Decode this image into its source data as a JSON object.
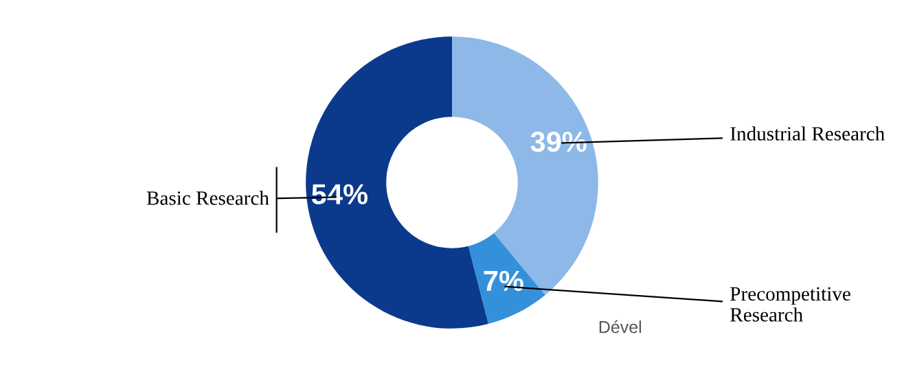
{
  "chart_data": {
    "type": "donut",
    "categories": [
      "Industrial Research",
      "Precompetitive Research",
      "Basic Research"
    ],
    "values": [
      39,
      7,
      54
    ],
    "colors": [
      "#8db8e8",
      "#3590dc",
      "#0b3a8c"
    ],
    "value_labels": [
      "39%",
      "7%",
      "54%"
    ],
    "annotations": [
      "Dével"
    ]
  }
}
